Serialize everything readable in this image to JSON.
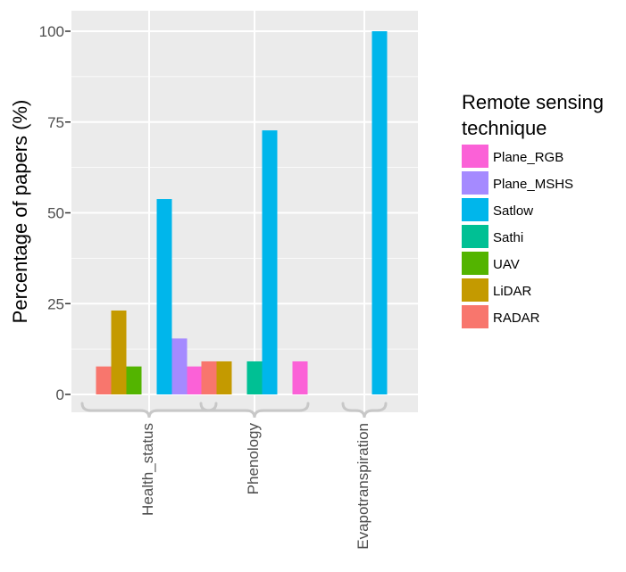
{
  "chart_data": {
    "type": "bar",
    "ylabel": "Percentage of papers (%)",
    "ylim": [
      0,
      100
    ],
    "yticks": [
      {
        "value": 0,
        "label": "0"
      },
      {
        "value": 25,
        "label": "25"
      },
      {
        "value": 50,
        "label": "50"
      },
      {
        "value": 75,
        "label": "75"
      },
      {
        "value": 100,
        "label": "100"
      }
    ],
    "categories": [
      "Health_status",
      "Phenology",
      "Evapotranspiration"
    ],
    "category_label_orientation": "vertical",
    "series": [
      {
        "name": "RADAR",
        "color": "#F8766D",
        "values": [
          7.7,
          9.1,
          0
        ]
      },
      {
        "name": "LiDAR",
        "color": "#C49A00",
        "values": [
          23.1,
          9.1,
          0
        ]
      },
      {
        "name": "UAV",
        "color": "#53B400",
        "values": [
          7.7,
          0,
          0
        ]
      },
      {
        "name": "Sathi",
        "color": "#00C094",
        "values": [
          0,
          9.1,
          0
        ]
      },
      {
        "name": "Satlow",
        "color": "#00B6EB",
        "values": [
          53.8,
          72.7,
          100
        ]
      },
      {
        "name": "Plane_MSHS",
        "color": "#A58AFF",
        "values": [
          15.4,
          0,
          0
        ]
      },
      {
        "name": "Plane_RGB",
        "color": "#FB61D7",
        "values": [
          7.7,
          9.1,
          0
        ]
      }
    ],
    "grid": true,
    "panel_background": "#EBEBEB",
    "gridline_color": "#FFFFFF",
    "legend": {
      "title_lines": [
        "Remote sensing",
        "technique"
      ],
      "placement": "right",
      "order": [
        "Plane_RGB",
        "Plane_MSHS",
        "Satlow",
        "Sathi",
        "UAV",
        "LiDAR",
        "RADAR"
      ]
    }
  }
}
